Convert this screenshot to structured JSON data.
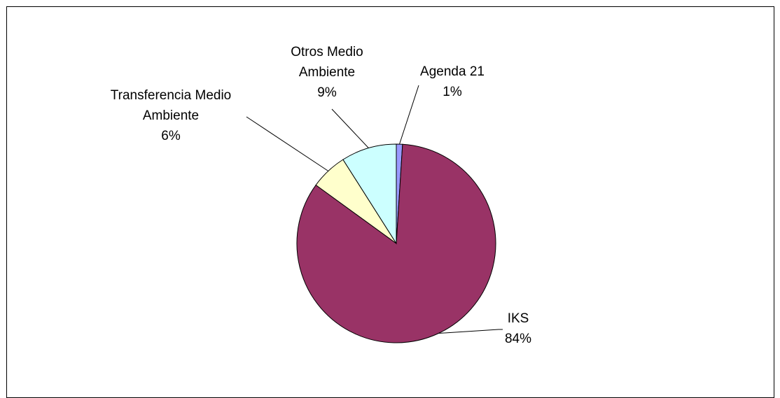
{
  "chart_data": {
    "type": "pie",
    "slices": [
      {
        "label": "Agenda 21",
        "percent_label": "1%",
        "value": 1,
        "color": "#9999ff"
      },
      {
        "label": "IKS",
        "percent_label": "84%",
        "value": 84,
        "color": "#993366"
      },
      {
        "label": "Transferencia Medio Ambiente",
        "percent_label": "6%",
        "value": 6,
        "color": "#ffffcc"
      },
      {
        "label": "Otros Medio Ambiente",
        "percent_label": "9%",
        "value": 9,
        "color": "#ccffff"
      }
    ]
  }
}
